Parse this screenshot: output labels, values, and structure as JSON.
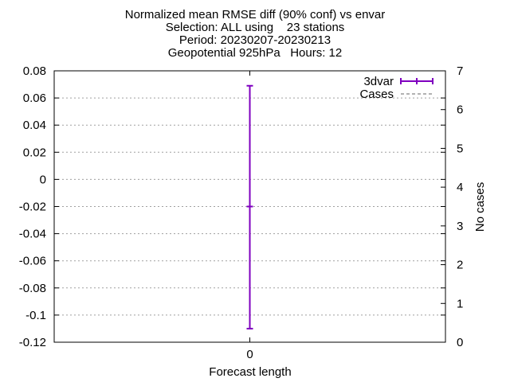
{
  "title": {
    "line1": "Normalized mean RMSE diff (90% conf) vs envar",
    "line2": "Selection: ALL using    23 stations",
    "line3": "Period: 20230207-20230213",
    "line4": "Geopotential 925hPa   Hours: 12"
  },
  "chart_data": {
    "type": "errorbar",
    "xlabel": "Forecast length",
    "ylabel": "",
    "y2label": "No cases",
    "x_ticks": [
      "0"
    ],
    "y_ticks": [
      "0.08",
      "0.06",
      "0.04",
      "0.02",
      "0",
      "-0.02",
      "-0.04",
      "-0.06",
      "-0.08",
      "-0.1",
      "-0.12"
    ],
    "y2_ticks": [
      "7",
      "6",
      "5",
      "4",
      "3",
      "2",
      "1",
      "0"
    ],
    "ylim": [
      -0.12,
      0.08
    ],
    "y2lim": [
      0,
      7
    ],
    "xlim": [
      -1,
      1
    ],
    "grid": true,
    "legend_position": "top-right",
    "series": [
      {
        "name": "3dvar",
        "color": "#7f00bf",
        "x": [
          0
        ],
        "y": [
          -0.02
        ],
        "y_low": [
          -0.11
        ],
        "y_high": [
          0.069
        ]
      },
      {
        "name": "Cases",
        "color": "#999999",
        "style": "dashed",
        "axis": "y2",
        "x": [],
        "y": []
      }
    ]
  }
}
